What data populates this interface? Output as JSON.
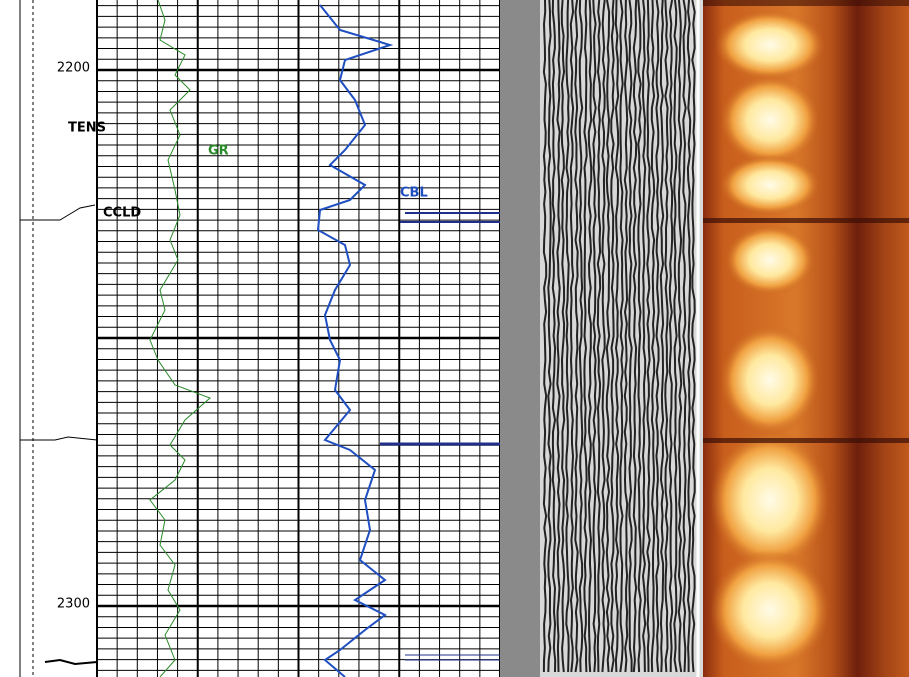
{
  "depth_labels": [
    "2200",
    "2300"
  ],
  "curve_labels": {
    "tens": "TENS",
    "gr": "GR",
    "ccld": "CCLD",
    "cbl": "CBL"
  }
}
